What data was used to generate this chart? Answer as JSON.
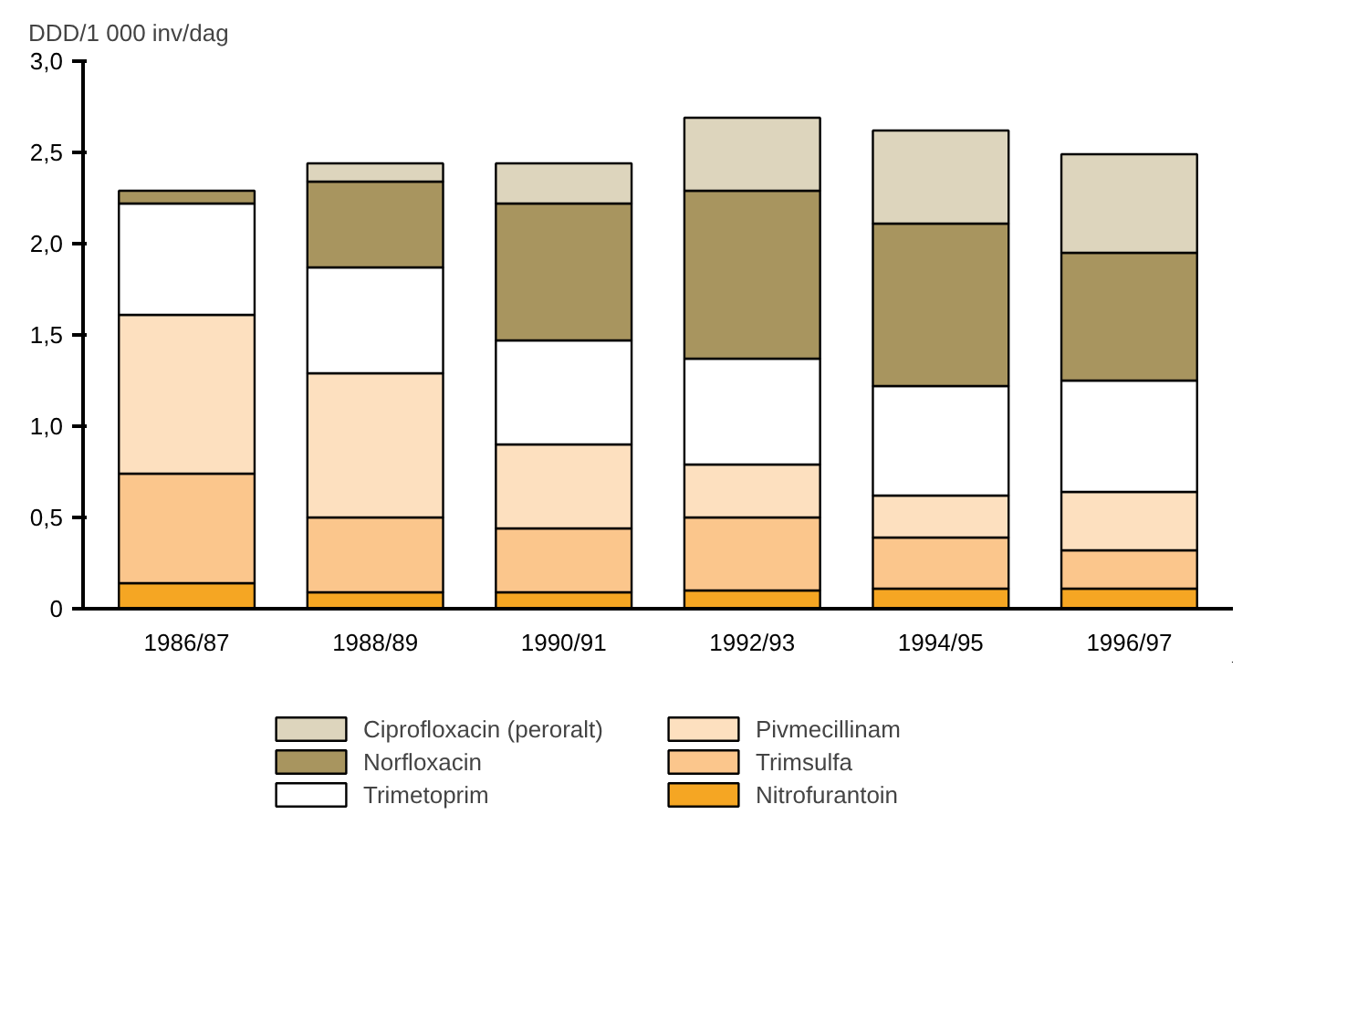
{
  "chart_data": {
    "type": "bar",
    "stacked": true,
    "ylabel": "DDD/1 000 inv/dag",
    "categories": [
      "1986/87",
      "1988/89",
      "1990/91",
      "1992/93",
      "1994/95",
      "1996/97"
    ],
    "series": [
      {
        "name": "Nitrofurantoin",
        "color": "#f5a623",
        "values": [
          0.14,
          0.09,
          0.09,
          0.1,
          0.11,
          0.11
        ]
      },
      {
        "name": "Trimsulfa",
        "color": "#fbc68c",
        "values": [
          0.6,
          0.41,
          0.35,
          0.4,
          0.28,
          0.21
        ]
      },
      {
        "name": "Pivmecillinam",
        "color": "#fde0bf",
        "values": [
          0.87,
          0.79,
          0.46,
          0.29,
          0.23,
          0.32
        ]
      },
      {
        "name": "Trimetoprim",
        "color": "#ffffff",
        "values": [
          0.61,
          0.58,
          0.57,
          0.58,
          0.6,
          0.61
        ]
      },
      {
        "name": "Norfloxacin",
        "color": "#a8955f",
        "values": [
          0.07,
          0.47,
          0.75,
          0.92,
          0.89,
          0.7
        ]
      },
      {
        "name": "Ciprofloxacin (peroralt)",
        "color": "#ddd5bd",
        "values": [
          null,
          0.1,
          0.22,
          0.4,
          0.51,
          0.54
        ]
      }
    ],
    "ylim": [
      0,
      3.0
    ],
    "yticks": [
      0,
      {
        "value": 0.5,
        "label": "0,5"
      },
      {
        "value": 1.0,
        "label": "1,0"
      },
      {
        "value": 1.5,
        "label": "1,5"
      },
      {
        "value": 2.0,
        "label": "2,0"
      },
      {
        "value": 2.5,
        "label": "2,5"
      },
      {
        "value": 3.0,
        "label": "3,0"
      }
    ],
    "grid": false,
    "legend": "bottom"
  }
}
